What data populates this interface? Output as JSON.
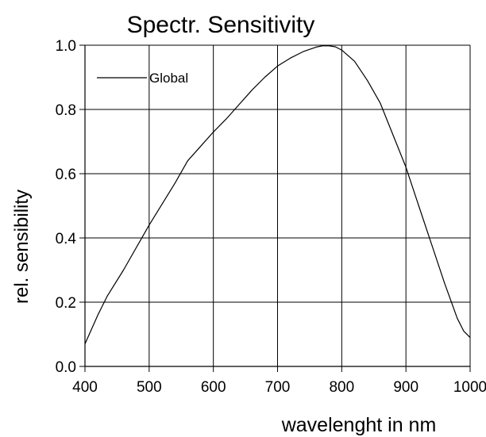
{
  "chart_data": {
    "type": "line",
    "title": "Spectr. Sensitivity",
    "xlabel": "wavelenght  in  nm",
    "ylabel": "rel. sensibility",
    "xlim": [
      400,
      1000
    ],
    "ylim": [
      0,
      1.0
    ],
    "x_ticks": [
      400,
      500,
      600,
      700,
      800,
      900,
      1000
    ],
    "x_tick_labels": [
      "400",
      "500",
      "600",
      "700",
      "800",
      "900",
      "1000"
    ],
    "y_ticks": [
      0,
      0.2,
      0.4,
      0.6,
      0.8,
      1.0
    ],
    "y_tick_labels": [
      "0.0",
      "0.2",
      "0.4",
      "0.6",
      "0.8",
      "1.0"
    ],
    "grid": true,
    "legend_position": "top-left",
    "series": [
      {
        "name": "Global",
        "color": "#000000",
        "x": [
          400,
          420,
          435,
          460,
          500,
          540,
          560,
          600,
          620,
          640,
          660,
          680,
          700,
          720,
          740,
          760,
          770,
          780,
          790,
          800,
          820,
          840,
          860,
          880,
          900,
          920,
          940,
          960,
          980,
          990,
          1000
        ],
        "y": [
          0.07,
          0.16,
          0.22,
          0.3,
          0.44,
          0.57,
          0.64,
          0.73,
          0.77,
          0.815,
          0.86,
          0.9,
          0.935,
          0.96,
          0.98,
          0.994,
          0.998,
          0.998,
          0.995,
          0.985,
          0.95,
          0.89,
          0.82,
          0.72,
          0.62,
          0.5,
          0.38,
          0.26,
          0.15,
          0.11,
          0.09
        ]
      }
    ]
  }
}
